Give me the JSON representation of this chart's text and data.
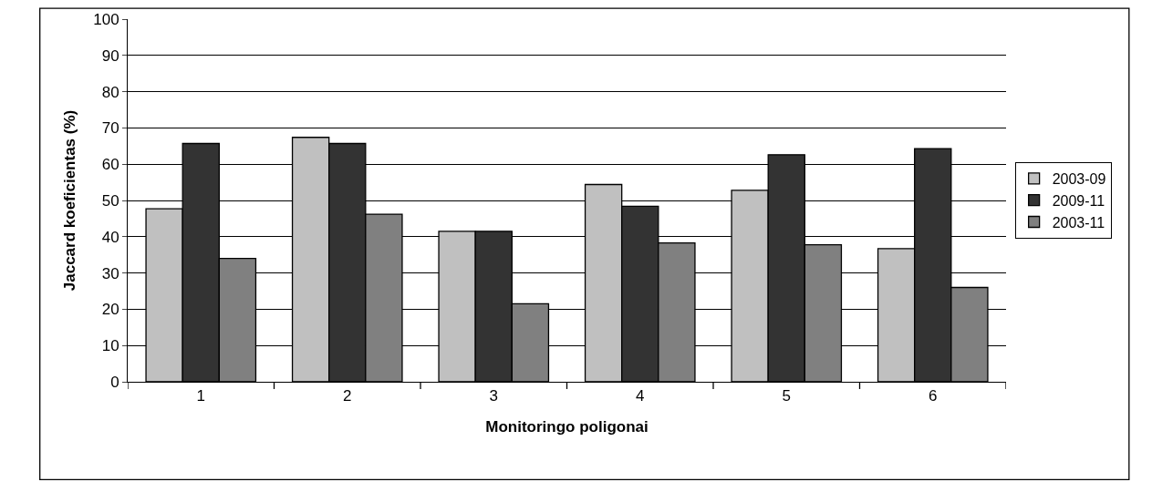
{
  "chart_data": {
    "type": "bar",
    "xlabel": "Monitoringo poligonai",
    "ylabel": "Jaccard koeficientas (%)",
    "categories": [
      "1",
      "2",
      "3",
      "4",
      "5",
      "6"
    ],
    "series": [
      {
        "name": "2003-09",
        "color": "#c0c0c0",
        "values": [
          47.7,
          67.4,
          41.5,
          54.4,
          52.8,
          36.7
        ]
      },
      {
        "name": "2009-11",
        "color": "#333333",
        "values": [
          65.7,
          65.7,
          41.5,
          48.4,
          62.6,
          64.3
        ]
      },
      {
        "name": "2003-11",
        "color": "#808080",
        "values": [
          34,
          46.2,
          21.5,
          38.3,
          37.8,
          26
        ]
      }
    ],
    "ylim": [
      0,
      100
    ],
    "yticks": [
      0,
      10,
      20,
      30,
      40,
      50,
      60,
      70,
      80,
      90,
      100
    ],
    "grid": "y",
    "legend": "right"
  }
}
